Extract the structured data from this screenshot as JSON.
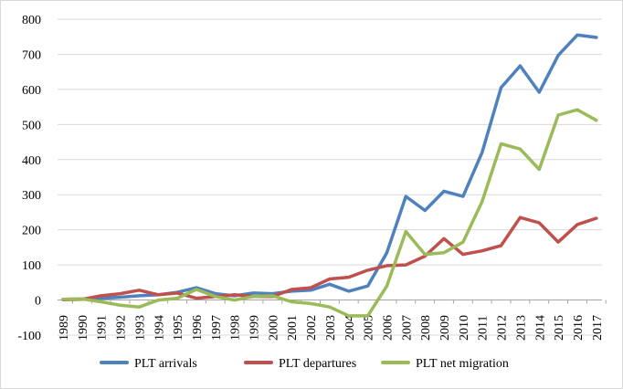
{
  "chart_data": {
    "type": "line",
    "title": "",
    "xlabel": "",
    "ylabel": "",
    "ylim": [
      -100,
      800
    ],
    "yticks": [
      -100,
      0,
      100,
      200,
      300,
      400,
      500,
      600,
      700,
      800
    ],
    "grid": true,
    "legend_position": "bottom",
    "categories": [
      "1989",
      "1990",
      "1991",
      "1992",
      "1993",
      "1994",
      "1995",
      "1996",
      "1997",
      "1998",
      "1999",
      "2000",
      "2001",
      "2002",
      "2003",
      "2004",
      "2005",
      "2006",
      "2007",
      "2008",
      "2009",
      "2010",
      "2011",
      "2012",
      "2013",
      "2014",
      "2015",
      "2016",
      "2017"
    ],
    "series": [
      {
        "name": "PLT arrivals",
        "color": "#4f81bd",
        "values": [
          2,
          3,
          5,
          8,
          12,
          15,
          22,
          35,
          18,
          12,
          20,
          18,
          25,
          28,
          45,
          25,
          40,
          135,
          295,
          255,
          310,
          295,
          420,
          605,
          667,
          592,
          697,
          755,
          748
        ]
      },
      {
        "name": "PLT departures",
        "color": "#c0504d",
        "values": [
          1,
          2,
          12,
          18,
          28,
          15,
          20,
          5,
          10,
          15,
          10,
          10,
          30,
          35,
          60,
          65,
          85,
          98,
          100,
          125,
          175,
          130,
          140,
          155,
          235,
          220,
          165,
          215,
          233
        ]
      },
      {
        "name": "PLT net migration",
        "color": "#9bbb59",
        "values": [
          2,
          3,
          -5,
          -15,
          -20,
          0,
          5,
          30,
          10,
          0,
          10,
          12,
          -5,
          -10,
          -20,
          -45,
          -45,
          40,
          195,
          130,
          135,
          165,
          280,
          445,
          430,
          372,
          527,
          542,
          512
        ]
      }
    ]
  }
}
